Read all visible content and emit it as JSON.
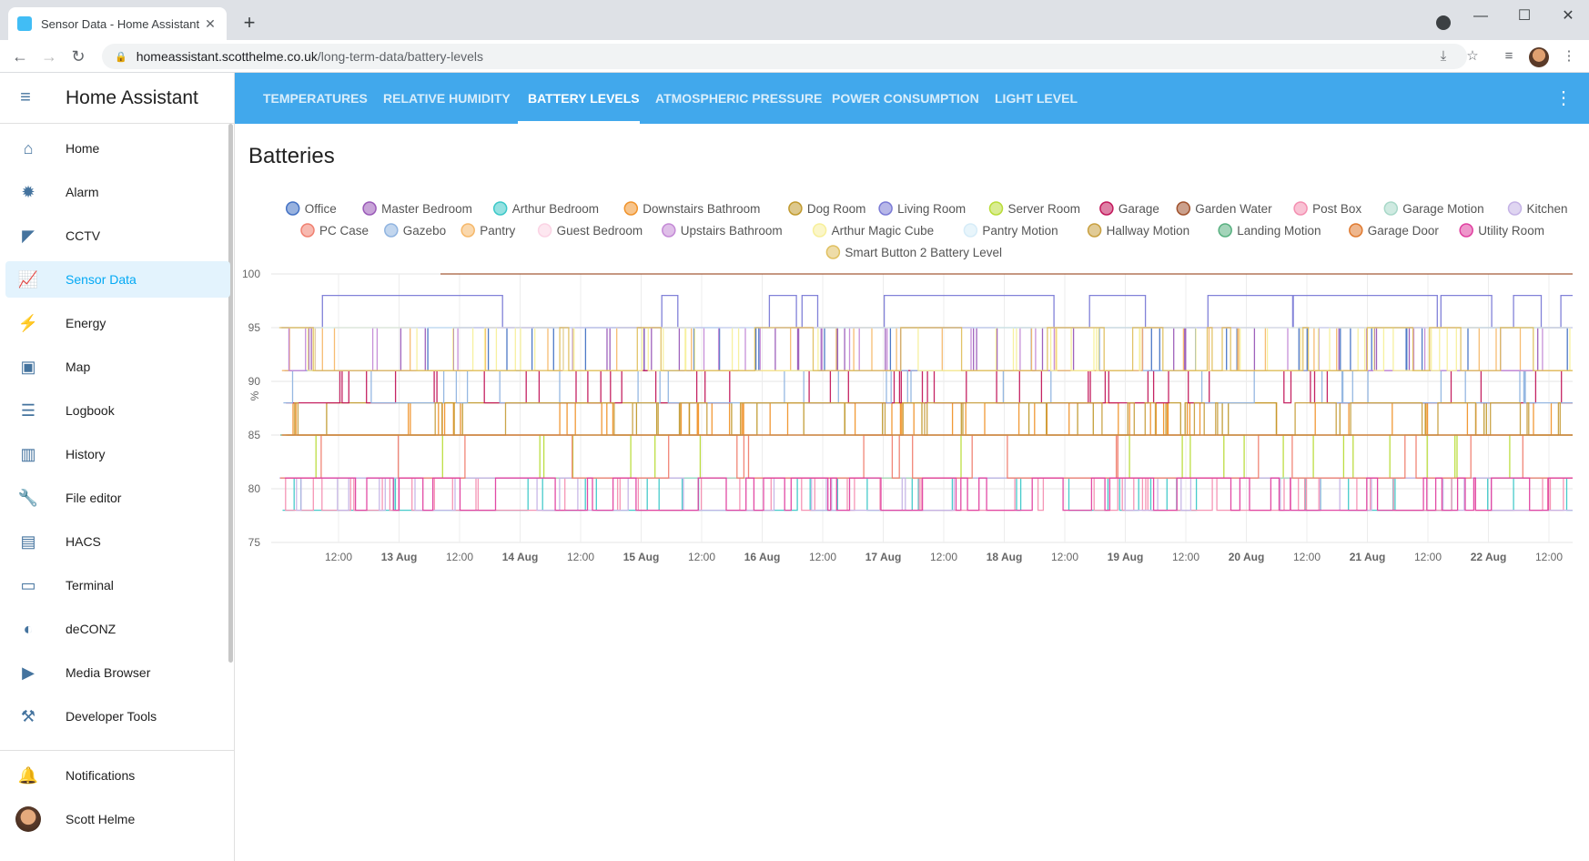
{
  "browser": {
    "tab_title": "Sensor Data - Home Assistant",
    "url_host": "homeassistant.scotthelme.co.uk",
    "url_path": "/long-term-data/battery-levels"
  },
  "sidebar": {
    "title": "Home Assistant",
    "items": [
      {
        "label": "Home",
        "icon": "home-icon",
        "glyph": "⌂"
      },
      {
        "label": "Alarm",
        "icon": "alarm-light-icon",
        "glyph": "✹"
      },
      {
        "label": "CCTV",
        "icon": "cctv-icon",
        "glyph": "◤"
      },
      {
        "label": "Sensor Data",
        "icon": "chart-line-icon",
        "glyph": "📈",
        "active": true
      },
      {
        "label": "Energy",
        "icon": "lightning-icon",
        "glyph": "⚡"
      },
      {
        "label": "Map",
        "icon": "map-account-icon",
        "glyph": "▣"
      },
      {
        "label": "Logbook",
        "icon": "list-icon",
        "glyph": "☰"
      },
      {
        "label": "History",
        "icon": "history-chart-icon",
        "glyph": "▥"
      },
      {
        "label": "File editor",
        "icon": "wrench-icon",
        "glyph": "🔧"
      },
      {
        "label": "HACS",
        "icon": "hacs-icon",
        "glyph": "▤"
      },
      {
        "label": "Terminal",
        "icon": "terminal-icon",
        "glyph": "▭"
      },
      {
        "label": "deCONZ",
        "icon": "deconz-icon",
        "glyph": "◐"
      },
      {
        "label": "Media Browser",
        "icon": "media-icon",
        "glyph": "▶"
      },
      {
        "label": "Developer Tools",
        "icon": "hammer-icon",
        "glyph": "⚒"
      }
    ],
    "notifications_label": "Notifications",
    "user_name": "Scott Helme"
  },
  "header": {
    "tabs": [
      {
        "label": "TEMPERATURES"
      },
      {
        "label": "RELATIVE HUMIDITY"
      },
      {
        "label": "BATTERY LEVELS",
        "active": true
      },
      {
        "label": "ATMOSPHERIC PRESSURE"
      },
      {
        "label": "POWER CONSUMPTION"
      },
      {
        "label": "LIGHT LEVEL"
      }
    ]
  },
  "page": {
    "title": "Batteries"
  },
  "chart_data": {
    "type": "line",
    "step": true,
    "ylabel": "%",
    "ylim": [
      75,
      100
    ],
    "yticks": [
      100,
      95,
      90,
      85,
      80,
      75
    ],
    "xticks": [
      "12:00",
      "13 Aug",
      "12:00",
      "14 Aug",
      "12:00",
      "15 Aug",
      "12:00",
      "16 Aug",
      "12:00",
      "17 Aug",
      "12:00",
      "18 Aug",
      "12:00",
      "19 Aug",
      "12:00",
      "20 Aug",
      "12:00",
      "21 Aug",
      "12:00",
      "22 Aug",
      "12:00"
    ],
    "grid": true,
    "legend_position": "top",
    "series": [
      {
        "name": "Office",
        "color": "#4472c4",
        "base": 91,
        "alt": 95
      },
      {
        "name": "Master Bedroom",
        "color": "#9a5ab8",
        "base": 95,
        "alt": 91
      },
      {
        "name": "Arthur Bedroom",
        "color": "#3cc8c8",
        "base": 78,
        "alt": 81
      },
      {
        "name": "Downstairs Bathroom",
        "color": "#f0932b",
        "base": 85,
        "alt": 88
      },
      {
        "name": "Dog Room",
        "color": "#c19a2e",
        "base": 85,
        "alt": 88
      },
      {
        "name": "Living Room",
        "color": "#7b7bd6",
        "base": 95,
        "alt": 98
      },
      {
        "name": "Server Room",
        "color": "#b9dc39",
        "base": 81,
        "alt": 85
      },
      {
        "name": "Garage",
        "color": "#c2185b",
        "base": 88,
        "alt": 91
      },
      {
        "name": "Garden Water",
        "color": "#a0522d",
        "base": 100,
        "alt": 100
      },
      {
        "name": "Post Box",
        "color": "#f48fb1",
        "base": 81,
        "alt": 78
      },
      {
        "name": "Garage Motion",
        "color": "#a8d8c8",
        "base": 81,
        "alt": 81
      },
      {
        "name": "Kitchen",
        "color": "#c5b3e6",
        "base": 81,
        "alt": 78
      },
      {
        "name": "PC Case",
        "color": "#f08070",
        "base": 81,
        "alt": 85
      },
      {
        "name": "Gazebo",
        "color": "#90b4e0",
        "base": 88,
        "alt": 91
      },
      {
        "name": "Pantry",
        "color": "#f5b86a",
        "base": 91,
        "alt": 95
      },
      {
        "name": "Guest Bedroom",
        "color": "#fbd3e4",
        "base": 85,
        "alt": 85
      },
      {
        "name": "Upstairs Bathroom",
        "color": "#c48ad6",
        "base": 95,
        "alt": 91
      },
      {
        "name": "Arthur Magic Cube",
        "color": "#f7ef9a",
        "base": 95,
        "alt": 91
      },
      {
        "name": "Pantry Motion",
        "color": "#d6ecf8",
        "base": 95,
        "alt": 95
      },
      {
        "name": "Hallway Motion",
        "color": "#c8a040",
        "base": 85,
        "alt": 88
      },
      {
        "name": "Landing Motion",
        "color": "#58b080",
        "base": 85,
        "alt": 85
      },
      {
        "name": "Garage Door",
        "color": "#e07a30",
        "base": 85,
        "alt": 85
      },
      {
        "name": "Utility Room",
        "color": "#e040a0",
        "base": 81,
        "alt": 78
      },
      {
        "name": "Smart Button 2 Battery Level",
        "color": "#e0c060",
        "base": 95,
        "alt": 91
      }
    ]
  }
}
